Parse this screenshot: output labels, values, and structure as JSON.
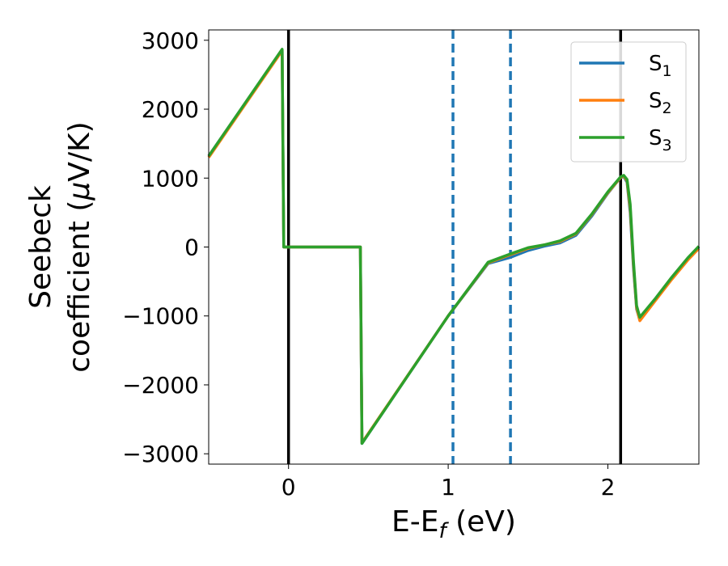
{
  "chart_data": {
    "type": "line",
    "xlabel": {
      "main": "E-E",
      "sub": "f",
      "tail": " (eV)"
    },
    "ylabel": {
      "line1": "Seebeck",
      "line2_pre": "coefficient  (",
      "mu": "μ",
      "line2_post": "V/K)"
    },
    "xlim": [
      -0.5,
      2.57
    ],
    "ylim": [
      -3150,
      3150
    ],
    "xticks": [
      0,
      1,
      2
    ],
    "xtick_labels": [
      "0",
      "1",
      "2"
    ],
    "yticks": [
      3000,
      2000,
      1000,
      0,
      -1000,
      -2000,
      -3000
    ],
    "ytick_labels": [
      "3000",
      "2000",
      "1000",
      "0",
      "−1000",
      "−2000",
      "−3000"
    ],
    "vlines_solid": [
      0.0,
      2.08
    ],
    "vlines_dashed": [
      1.03,
      1.39
    ],
    "colors": {
      "s1": "#1f77b4",
      "s2": "#ff7f0e",
      "s3": "#2ca02c",
      "solid_vline": "#000000",
      "dashed_vline": "#1f77b4"
    },
    "legend_position": "top-right",
    "series": [
      {
        "name": "S",
        "sub": "1",
        "color": "#1f77b4",
        "x": [
          -0.5,
          -0.04,
          -0.03,
          0.45,
          0.46,
          1.0,
          1.25,
          1.39,
          1.5,
          1.6,
          1.7,
          1.8,
          1.9,
          2.0,
          2.08,
          2.1,
          2.12,
          2.14,
          2.16,
          2.18,
          2.2,
          2.3,
          2.4,
          2.5,
          2.57
        ],
        "y": [
          1320,
          2860,
          0,
          0,
          -2850,
          -1000,
          -240,
          -150,
          -50,
          10,
          60,
          170,
          450,
          780,
          1010,
          1020,
          940,
          500,
          -300,
          -900,
          -1060,
          -750,
          -450,
          -170,
          0
        ]
      },
      {
        "name": "S",
        "sub": "2",
        "color": "#ff7f0e",
        "x": [
          -0.5,
          -0.04,
          -0.03,
          0.45,
          0.46,
          1.0,
          1.25,
          1.39,
          1.5,
          1.6,
          1.7,
          1.8,
          1.9,
          2.0,
          2.08,
          2.1,
          2.12,
          2.14,
          2.16,
          2.18,
          2.2,
          2.3,
          2.4,
          2.5,
          2.57
        ],
        "y": [
          1300,
          2850,
          0,
          0,
          -2840,
          -1000,
          -230,
          -110,
          -20,
          30,
          80,
          190,
          470,
          790,
          1010,
          1030,
          960,
          560,
          -250,
          -880,
          -1070,
          -770,
          -470,
          -190,
          -20
        ]
      },
      {
        "name": "S",
        "sub": "3",
        "color": "#2ca02c",
        "x": [
          -0.5,
          -0.04,
          -0.03,
          0.45,
          0.46,
          1.0,
          1.25,
          1.39,
          1.5,
          1.6,
          1.7,
          1.8,
          1.9,
          2.0,
          2.08,
          2.1,
          2.12,
          2.14,
          2.16,
          2.18,
          2.2,
          2.3,
          2.4,
          2.5,
          2.57
        ],
        "y": [
          1320,
          2870,
          0,
          0,
          -2850,
          -1000,
          -220,
          -100,
          -10,
          30,
          90,
          200,
          480,
          800,
          1020,
          1040,
          980,
          620,
          -200,
          -850,
          -1020,
          -740,
          -440,
          -160,
          10
        ]
      }
    ]
  }
}
